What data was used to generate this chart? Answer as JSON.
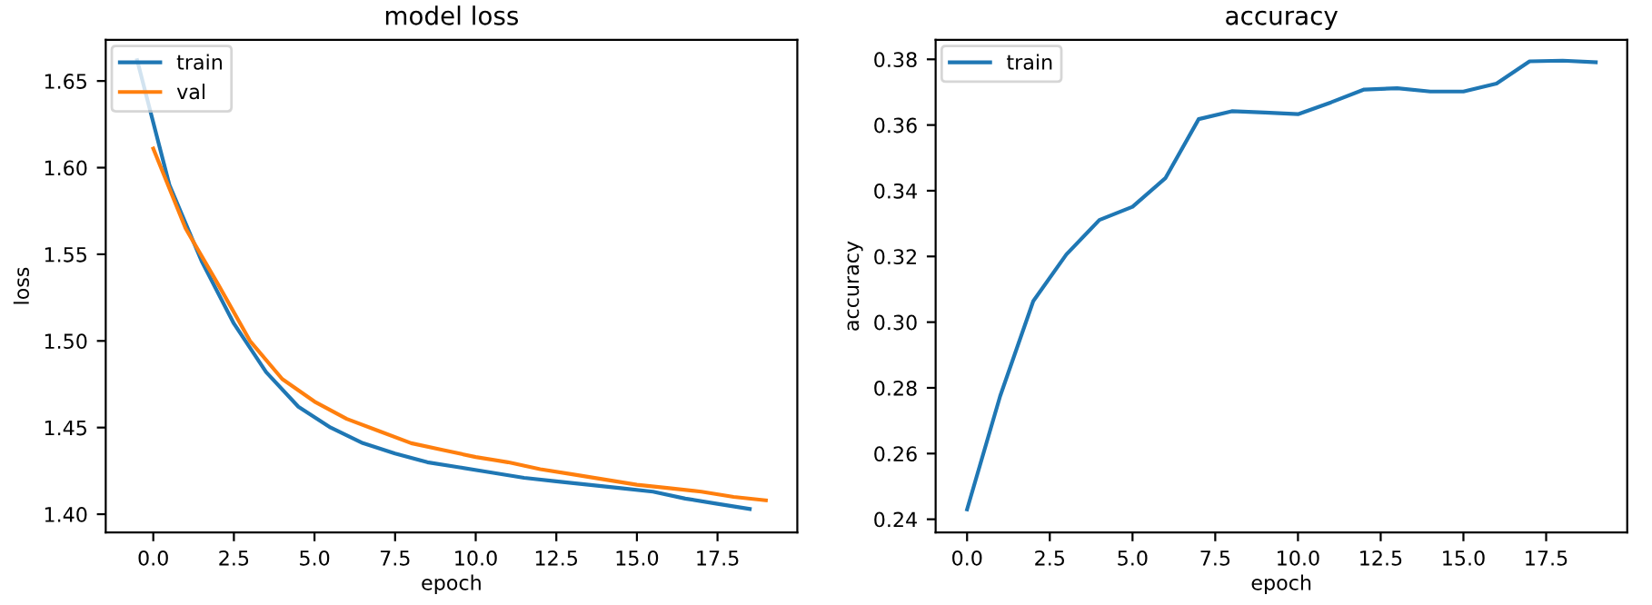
{
  "chart_data": [
    {
      "type": "line",
      "title": "model loss",
      "xlabel": "epoch",
      "ylabel": "loss",
      "xlim": [
        -1.475,
        19.975
      ],
      "ylim": [
        1.3895,
        1.6737
      ],
      "xticks": [
        {
          "value": 0,
          "label": "0.0"
        },
        {
          "value": 2.5,
          "label": "2.5"
        },
        {
          "value": 5,
          "label": "5.0"
        },
        {
          "value": 7.5,
          "label": "7.5"
        },
        {
          "value": 10,
          "label": "10.0"
        },
        {
          "value": 12.5,
          "label": "12.5"
        },
        {
          "value": 15,
          "label": "15.0"
        },
        {
          "value": 17.5,
          "label": "17.5"
        }
      ],
      "yticks": [
        {
          "value": 1.4,
          "label": "1.40"
        },
        1.45,
        {
          "value": 1.5,
          "label": "1.50"
        },
        1.55,
        {
          "value": 1.6,
          "label": "1.60"
        },
        1.65
      ],
      "grid": false,
      "legend": "top left",
      "series": [
        {
          "name": "train",
          "color": "#1f77b4",
          "x": [
            -0.5,
            0.5,
            1.5,
            2.5,
            3.5,
            4.5,
            5.5,
            6.5,
            7.5,
            8.5,
            9.5,
            10.5,
            11.5,
            12.5,
            13.5,
            14.5,
            15.5,
            16.5,
            17.5,
            18.5
          ],
          "values": [
            1.662,
            1.59,
            1.546,
            1.51,
            1.482,
            1.462,
            1.45,
            1.441,
            1.435,
            1.43,
            1.427,
            1.424,
            1.421,
            1.419,
            1.417,
            1.415,
            1.413,
            1.409,
            1.406,
            1.403
          ]
        },
        {
          "name": "val",
          "color": "#ff7f0e",
          "x": [
            0,
            1,
            2,
            3,
            4,
            5,
            6,
            7,
            8,
            9,
            10,
            11,
            12,
            13,
            14,
            15,
            16,
            17,
            18,
            19
          ],
          "values": [
            1.611,
            1.565,
            1.533,
            1.5,
            1.478,
            1.465,
            1.455,
            1.448,
            1.441,
            1.437,
            1.433,
            1.43,
            1.426,
            1.423,
            1.42,
            1.417,
            1.415,
            1.413,
            1.41,
            1.408
          ]
        }
      ]
    },
    {
      "type": "line",
      "title": "accuracy",
      "xlabel": "epoch",
      "ylabel": "accuracy",
      "xlim": [
        -0.95,
        19.95
      ],
      "ylim": [
        0.236,
        0.3859
      ],
      "xticks": [
        {
          "value": 0,
          "label": "0.0"
        },
        {
          "value": 2.5,
          "label": "2.5"
        },
        {
          "value": 5,
          "label": "5.0"
        },
        {
          "value": 7.5,
          "label": "7.5"
        },
        {
          "value": 10,
          "label": "10.0"
        },
        {
          "value": 12.5,
          "label": "12.5"
        },
        {
          "value": 15,
          "label": "15.0"
        },
        {
          "value": 17.5,
          "label": "17.5"
        }
      ],
      "yticks": [
        0.24,
        0.26,
        0.28,
        {
          "value": 0.3,
          "label": "0.30"
        },
        0.32,
        0.34,
        0.36,
        0.38
      ],
      "grid": false,
      "legend": "top left",
      "series": [
        {
          "name": "train",
          "color": "#1f77b4",
          "x": [
            0,
            1,
            2,
            3,
            4,
            5,
            6,
            7,
            8,
            9,
            10,
            11,
            12,
            13,
            14,
            15,
            16,
            17,
            18,
            19
          ],
          "values": [
            0.243,
            0.2775,
            0.3064,
            0.3206,
            0.3311,
            0.3351,
            0.3439,
            0.3618,
            0.3642,
            0.3638,
            0.3633,
            0.3669,
            0.3708,
            0.3712,
            0.3702,
            0.3702,
            0.3726,
            0.3794,
            0.3796,
            0.3791
          ]
        }
      ]
    }
  ]
}
